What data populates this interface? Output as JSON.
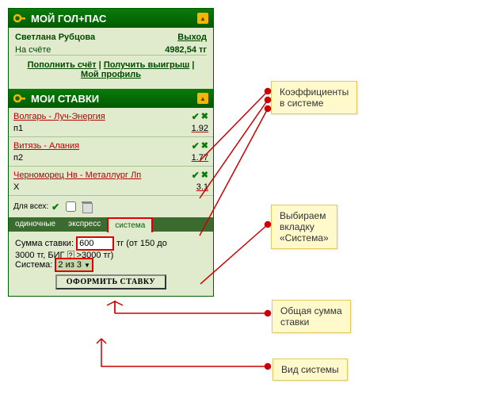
{
  "header1": {
    "title": "МОЙ ГОЛ+ПАС"
  },
  "account": {
    "name": "Светлана Рубцова",
    "logout": "Выход",
    "balance_label": "На счёте",
    "balance": "4982,54 тг",
    "topup": "Пополнить счёт",
    "withdraw": "Получить выигрыш",
    "profile": "Мой профиль"
  },
  "header2": {
    "title": "МОИ СТАВКИ"
  },
  "bets": [
    {
      "match": "Волгарь - Луч-Энергия",
      "pick": "п1",
      "odd": "1.92"
    },
    {
      "match": "Витязь - Алания",
      "pick": "п2",
      "odd": "1.77"
    },
    {
      "match": "Черноморец Нв - Металлург Лп",
      "pick": "X",
      "odd": "3.1"
    }
  ],
  "forall": "Для всех:",
  "tabs": {
    "t1": "одиночные",
    "t2": "экспресс",
    "t3": "система"
  },
  "form": {
    "sum_label": "Сумма ставки:",
    "sum_value": "600",
    "sum_suffix": "тг (от 150 до",
    "sum_line2": "3000 тг, БИГ",
    "sum_line2b": ">3000 тг)",
    "sys_label": "Система:",
    "sys_value": "2 из 3",
    "submit": "ОФОРМИТЬ СТАВКУ"
  },
  "callouts": {
    "c1": "Коэффициенты\nв системе",
    "c2": "Выбираем\nвкладку\n«Система»",
    "c3": "Общая сумма\nставки",
    "c4": "Вид системы"
  }
}
